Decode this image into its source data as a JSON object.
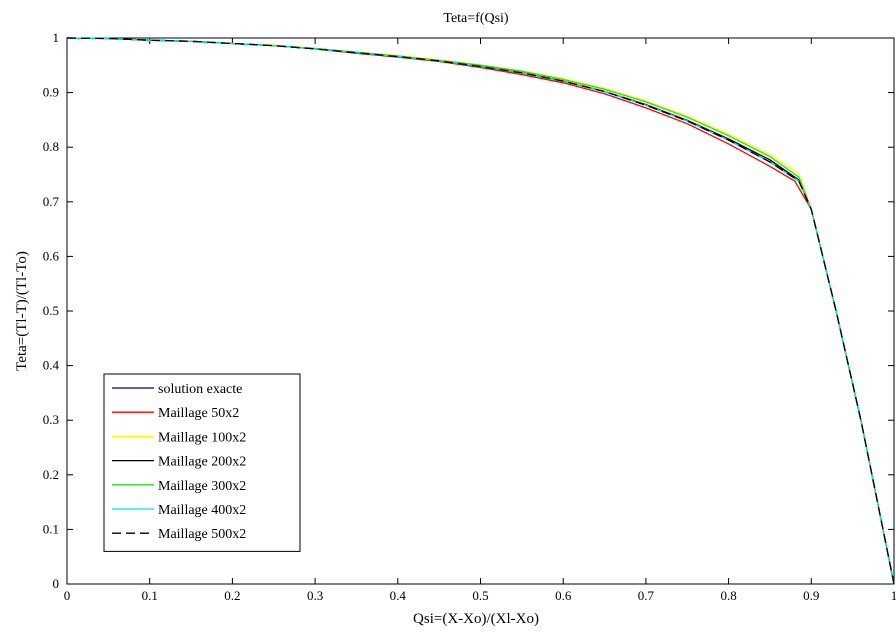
{
  "chart_data": {
    "type": "line",
    "title": "Teta=f(Qsi)",
    "xlabel": "Qsi=(X-Xo)/(Xl-Xo)",
    "ylabel": "Teta=(Tl-T)/(Tl-To)",
    "xlim": [
      0,
      1
    ],
    "ylim": [
      0,
      1
    ],
    "xticks": [
      "0",
      "0.1",
      "0.2",
      "0.3",
      "0.4",
      "0.5",
      "0.6",
      "0.7",
      "0.8",
      "0.9",
      "1"
    ],
    "yticks": [
      "0",
      "0.1",
      "0.2",
      "0.3",
      "0.4",
      "0.5",
      "0.6",
      "0.7",
      "0.8",
      "0.9",
      "1"
    ],
    "grid": false,
    "legend_position": "bottom-left",
    "series": [
      {
        "name": "solution exacte",
        "color": "#00008b",
        "dash": "solid",
        "x": [
          0,
          0.05,
          0.1,
          0.15,
          0.2,
          0.25,
          0.3,
          0.35,
          0.4,
          0.45,
          0.5,
          0.55,
          0.6,
          0.65,
          0.7,
          0.75,
          0.8,
          0.85,
          0.885,
          0.9,
          0.93,
          0.96,
          0.98,
          1.0
        ],
        "y": [
          1.0,
          0.999,
          0.996,
          0.994,
          0.99,
          0.986,
          0.98,
          0.973,
          0.966,
          0.958,
          0.948,
          0.936,
          0.921,
          0.902,
          0.877,
          0.848,
          0.813,
          0.773,
          0.738,
          0.686,
          0.5,
          0.3,
          0.15,
          0.0
        ]
      },
      {
        "name": "Maillage 50x2",
        "color": "#ff0000",
        "dash": "solid",
        "x": [
          0,
          0.05,
          0.1,
          0.15,
          0.2,
          0.25,
          0.3,
          0.35,
          0.4,
          0.45,
          0.5,
          0.55,
          0.6,
          0.65,
          0.7,
          0.75,
          0.8,
          0.85,
          0.88,
          0.9,
          0.93,
          0.96,
          0.98,
          1.0
        ],
        "y": [
          1.0,
          0.999,
          0.996,
          0.994,
          0.99,
          0.986,
          0.98,
          0.972,
          0.965,
          0.957,
          0.946,
          0.933,
          0.918,
          0.898,
          0.872,
          0.843,
          0.806,
          0.765,
          0.738,
          0.686,
          0.5,
          0.3,
          0.15,
          0.0
        ]
      },
      {
        "name": "Maillage 100x2",
        "color": "#ffff00",
        "dash": "solid",
        "x": [
          0,
          0.05,
          0.1,
          0.15,
          0.2,
          0.25,
          0.3,
          0.35,
          0.4,
          0.45,
          0.5,
          0.55,
          0.6,
          0.65,
          0.7,
          0.75,
          0.8,
          0.85,
          0.885,
          0.9,
          0.93,
          0.96,
          0.98,
          1.0
        ],
        "y": [
          1.0,
          0.999,
          0.996,
          0.994,
          0.99,
          0.987,
          0.981,
          0.974,
          0.968,
          0.96,
          0.951,
          0.94,
          0.926,
          0.908,
          0.885,
          0.857,
          0.824,
          0.787,
          0.752,
          0.686,
          0.5,
          0.3,
          0.15,
          0.0
        ]
      },
      {
        "name": "Maillage 200x2",
        "color": "#000000",
        "dash": "solid",
        "x": [
          0,
          0.05,
          0.1,
          0.15,
          0.2,
          0.25,
          0.3,
          0.35,
          0.4,
          0.45,
          0.5,
          0.55,
          0.6,
          0.65,
          0.7,
          0.75,
          0.8,
          0.85,
          0.885,
          0.9,
          0.93,
          0.96,
          0.98,
          1.0
        ],
        "y": [
          1.0,
          0.999,
          0.996,
          0.994,
          0.99,
          0.986,
          0.98,
          0.973,
          0.966,
          0.958,
          0.948,
          0.936,
          0.921,
          0.902,
          0.878,
          0.849,
          0.815,
          0.777,
          0.74,
          0.686,
          0.5,
          0.3,
          0.15,
          0.0
        ]
      },
      {
        "name": "Maillage 300x2",
        "color": "#22dd22",
        "dash": "solid",
        "x": [
          0,
          0.05,
          0.1,
          0.15,
          0.2,
          0.25,
          0.3,
          0.35,
          0.4,
          0.45,
          0.5,
          0.55,
          0.6,
          0.65,
          0.7,
          0.75,
          0.8,
          0.85,
          0.885,
          0.9,
          0.93,
          0.96,
          0.98,
          1.0
        ],
        "y": [
          1.0,
          0.999,
          0.996,
          0.994,
          0.99,
          0.986,
          0.981,
          0.974,
          0.967,
          0.959,
          0.95,
          0.939,
          0.924,
          0.906,
          0.883,
          0.855,
          0.821,
          0.783,
          0.745,
          0.686,
          0.5,
          0.3,
          0.15,
          0.0
        ]
      },
      {
        "name": "Maillage 400x2",
        "color": "#00e5e5",
        "dash": "solid",
        "x": [
          0,
          0.05,
          0.1,
          0.15,
          0.2,
          0.25,
          0.3,
          0.35,
          0.4,
          0.45,
          0.5,
          0.55,
          0.6,
          0.65,
          0.7,
          0.75,
          0.8,
          0.85,
          0.885,
          0.9,
          0.93,
          0.96,
          0.98,
          1.0
        ],
        "y": [
          1.0,
          0.999,
          0.996,
          0.994,
          0.99,
          0.986,
          0.98,
          0.973,
          0.966,
          0.958,
          0.948,
          0.936,
          0.921,
          0.902,
          0.877,
          0.848,
          0.813,
          0.773,
          0.738,
          0.686,
          0.5,
          0.3,
          0.15,
          0.0
        ]
      },
      {
        "name": "Maillage 500x2",
        "color": "#000000",
        "dash": "dashed",
        "x": [
          0,
          0.05,
          0.1,
          0.15,
          0.2,
          0.25,
          0.3,
          0.35,
          0.4,
          0.45,
          0.5,
          0.55,
          0.6,
          0.65,
          0.7,
          0.75,
          0.8,
          0.85,
          0.885,
          0.9,
          0.93,
          0.96,
          0.98,
          1.0
        ],
        "y": [
          1.0,
          0.999,
          0.996,
          0.994,
          0.99,
          0.986,
          0.98,
          0.973,
          0.966,
          0.958,
          0.948,
          0.936,
          0.921,
          0.902,
          0.877,
          0.848,
          0.813,
          0.773,
          0.738,
          0.686,
          0.5,
          0.3,
          0.15,
          0.0
        ]
      }
    ]
  }
}
